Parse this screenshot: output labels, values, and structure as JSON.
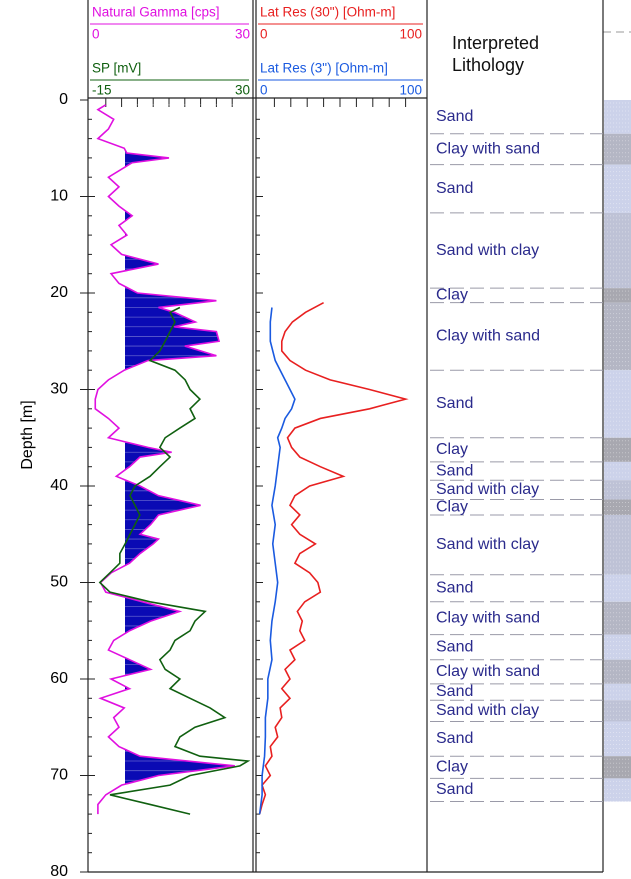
{
  "chart_data": {
    "type": "well_log",
    "ylabel": "Depth [m]",
    "ylim": [
      0,
      80
    ],
    "yticks": [
      0,
      10,
      20,
      30,
      40,
      50,
      60,
      70,
      80
    ],
    "tracks": [
      {
        "series": [
          {
            "name": "Natural Gamma [cps]",
            "color": "#e010e0",
            "xlim": [
              0,
              30
            ],
            "depth": [
              0.5,
              1,
              2,
              3,
              4,
              5,
              5.5,
              6,
              6.5,
              7,
              8,
              9,
              10,
              11,
              12,
              13,
              14,
              15,
              16,
              17,
              18,
              19,
              20,
              20.8,
              21.5,
              22,
              23,
              23.5,
              24,
              25,
              25.5,
              26.5,
              27,
              28,
              29,
              30,
              31,
              32,
              33,
              34,
              35,
              36,
              36.5,
              37,
              38,
              39,
              40,
              41,
              42,
              43,
              44,
              45,
              45.5,
              46,
              47,
              48,
              49,
              50,
              51,
              52,
              53,
              54,
              55,
              56,
              57,
              58,
              59,
              60,
              61,
              62,
              63,
              64,
              65,
              66,
              67,
              68,
              69,
              70,
              71,
              72,
              73,
              74
            ],
            "values": [
              3,
              1.5,
              4.5,
              3.5,
              1.5,
              6.5,
              7,
              15,
              8,
              6.5,
              3.5,
              5.5,
              3.5,
              5.5,
              8,
              5.5,
              7,
              4,
              6,
              13,
              4,
              5.5,
              9,
              24,
              13,
              16,
              20,
              16,
              24,
              24.5,
              18,
              24,
              11,
              6.5,
              3.5,
              1.5,
              1,
              1,
              3.5,
              5.5,
              3.5,
              11,
              15.5,
              9.5,
              7.5,
              5,
              9.5,
              13,
              21,
              13,
              11.5,
              9.5,
              13,
              12,
              9.5,
              7.5,
              4,
              2,
              3,
              10,
              17,
              11.5,
              7.5,
              4.5,
              3.5,
              7.5,
              11.5,
              4,
              7.5,
              2,
              6.5,
              4.5,
              5.5,
              3.5,
              5.5,
              9.5,
              27.5,
              13,
              6,
              3,
              1.5,
              1.5
            ]
          },
          {
            "name": "SP [mV]",
            "color": "#106010",
            "xlim": [
              -15,
              30
            ],
            "depth": [
              21.5,
              22,
              23,
              24,
              25,
              26,
              27,
              28,
              29,
              30,
              31,
              32,
              33,
              34,
              35,
              36,
              37,
              38,
              39,
              40,
              41,
              42,
              43,
              44,
              45,
              46,
              47,
              48,
              49,
              50,
              51,
              52,
              53,
              54,
              55,
              56,
              57,
              58,
              59,
              60,
              61,
              62,
              63,
              64,
              65,
              66,
              67,
              68,
              68.5,
              69,
              70,
              71,
              72,
              73,
              74
            ],
            "values": [
              10.6,
              7.8,
              9.2,
              7.8,
              6.4,
              4.9,
              2.1,
              9.2,
              12.1,
              13.5,
              16.3,
              13.5,
              14.9,
              10.6,
              6.4,
              4.9,
              7.8,
              4.9,
              2.1,
              -2.2,
              -3.6,
              -2.2,
              -0.8,
              -2.2,
              -3.6,
              -5,
              -6.5,
              -6.5,
              -9.3,
              -12.2,
              -9.3,
              2.1,
              17.8,
              14.9,
              13.5,
              9.2,
              7.8,
              4.9,
              6.4,
              10.6,
              7.8,
              13.5,
              19.2,
              23.4,
              14.9,
              10.6,
              9.2,
              16.3,
              30,
              27.7,
              13.5,
              7.8,
              -9.3,
              2.1,
              13.5
            ]
          }
        ]
      },
      {
        "series": [
          {
            "name": "Lat Res (30\") [Ohm-m]",
            "color": "#e82020",
            "xlim": [
              0,
              100
            ],
            "depth": [
              21,
              22,
              23,
              24,
              25,
              26,
              27,
              28,
              29,
              30,
              31,
              32,
              33,
              34,
              35,
              36,
              37,
              38,
              39,
              40,
              41,
              42,
              43,
              44,
              45,
              46,
              47,
              48,
              49,
              50,
              51,
              52,
              53,
              54,
              55,
              56,
              57,
              58,
              59,
              60,
              61,
              62,
              63,
              64,
              65,
              66,
              67,
              68,
              69,
              70,
              71,
              72,
              73,
              74
            ],
            "values": [
              40,
              29,
              21,
              16.5,
              14.5,
              14.5,
              19.5,
              29,
              44,
              68,
              90,
              68,
              38,
              22.5,
              18,
              20.5,
              25.5,
              38,
              52,
              31.5,
              22.5,
              19.5,
              25.5,
              20.5,
              25.5,
              35,
              25.5,
              22.5,
              31.5,
              36.5,
              38,
              28.5,
              24,
              27,
              25.5,
              28.5,
              19.5,
              22.5,
              16.5,
              19.5,
              14.5,
              19.5,
              13.5,
              14.5,
              10.5,
              12,
              7.5,
              8.5,
              4.5,
              7.5,
              2.5,
              4.5,
              2.5,
              1
            ]
          },
          {
            "name": "Lat Res (3\") [Ohm-m]",
            "color": "#1a5ae0",
            "xlim": [
              0,
              100
            ],
            "depth": [
              21.5,
              23,
              25,
              27,
              29,
              30,
              31,
              32,
              33,
              34,
              35,
              36,
              38,
              40,
              42,
              44,
              46,
              48,
              50,
              52,
              54,
              56,
              58,
              60,
              62,
              64,
              66,
              68,
              70,
              72,
              74
            ],
            "values": [
              8.5,
              7.5,
              7.5,
              10.5,
              16.5,
              19.5,
              22.5,
              20.5,
              16.5,
              14.5,
              12,
              13.5,
              12,
              10.5,
              8.5,
              10.5,
              9,
              10.5,
              12,
              10.5,
              8.5,
              7.5,
              8.5,
              6,
              6,
              4.5,
              4.5,
              4,
              2.5,
              2.5,
              1
            ]
          }
        ]
      }
    ],
    "lithology": {
      "title": "Interpreted Lithology",
      "intervals": [
        {
          "label": "Sand",
          "top": 0,
          "base": 3.5,
          "color": "#ccd2ea"
        },
        {
          "label": "Clay with sand",
          "top": 3.5,
          "base": 6.7,
          "color": "#b4b6c4"
        },
        {
          "label": "Sand",
          "top": 6.7,
          "base": 11.7,
          "color": "#ccd2ea"
        },
        {
          "label": "Sand with clay",
          "top": 11.7,
          "base": 19.5,
          "color": "#bec2d6"
        },
        {
          "label": "Clay",
          "top": 19.5,
          "base": 21,
          "color": "#a8a8b0"
        },
        {
          "label": "Clay with sand",
          "top": 21,
          "base": 28,
          "color": "#b4b6c4"
        },
        {
          "label": "Sand",
          "top": 28,
          "base": 35,
          "color": "#ccd2ea"
        },
        {
          "label": "Clay",
          "top": 35,
          "base": 37.5,
          "color": "#a8a8b0"
        },
        {
          "label": "Sand",
          "top": 37.5,
          "base": 39.4,
          "color": "#ccd2ea"
        },
        {
          "label": "Sand with clay",
          "top": 39.4,
          "base": 41.4,
          "color": "#bec2d6"
        },
        {
          "label": "Clay",
          "top": 41.4,
          "base": 43,
          "color": "#a8a8b0"
        },
        {
          "label": "Sand with clay",
          "top": 43,
          "base": 49.2,
          "color": "#bec2d6"
        },
        {
          "label": "Sand",
          "top": 49.2,
          "base": 52,
          "color": "#ccd2ea"
        },
        {
          "label": "Clay with sand",
          "top": 52,
          "base": 55.4,
          "color": "#b4b6c4"
        },
        {
          "label": "Sand",
          "top": 55.4,
          "base": 58,
          "color": "#ccd2ea"
        },
        {
          "label": "Clay with sand",
          "top": 58,
          "base": 60.5,
          "color": "#b4b6c4"
        },
        {
          "label": "Sand",
          "top": 60.5,
          "base": 62.2,
          "color": "#ccd2ea"
        },
        {
          "label": "Sand with clay",
          "top": 62.2,
          "base": 64.4,
          "color": "#bec2d6"
        },
        {
          "label": "Sand",
          "top": 64.4,
          "base": 68,
          "color": "#ccd2ea"
        },
        {
          "label": "Clay",
          "top": 68,
          "base": 70.3,
          "color": "#a8a8b0"
        },
        {
          "label": "Sand",
          "top": 70.3,
          "base": 72.7,
          "color": "#ccd2ea"
        }
      ]
    }
  }
}
